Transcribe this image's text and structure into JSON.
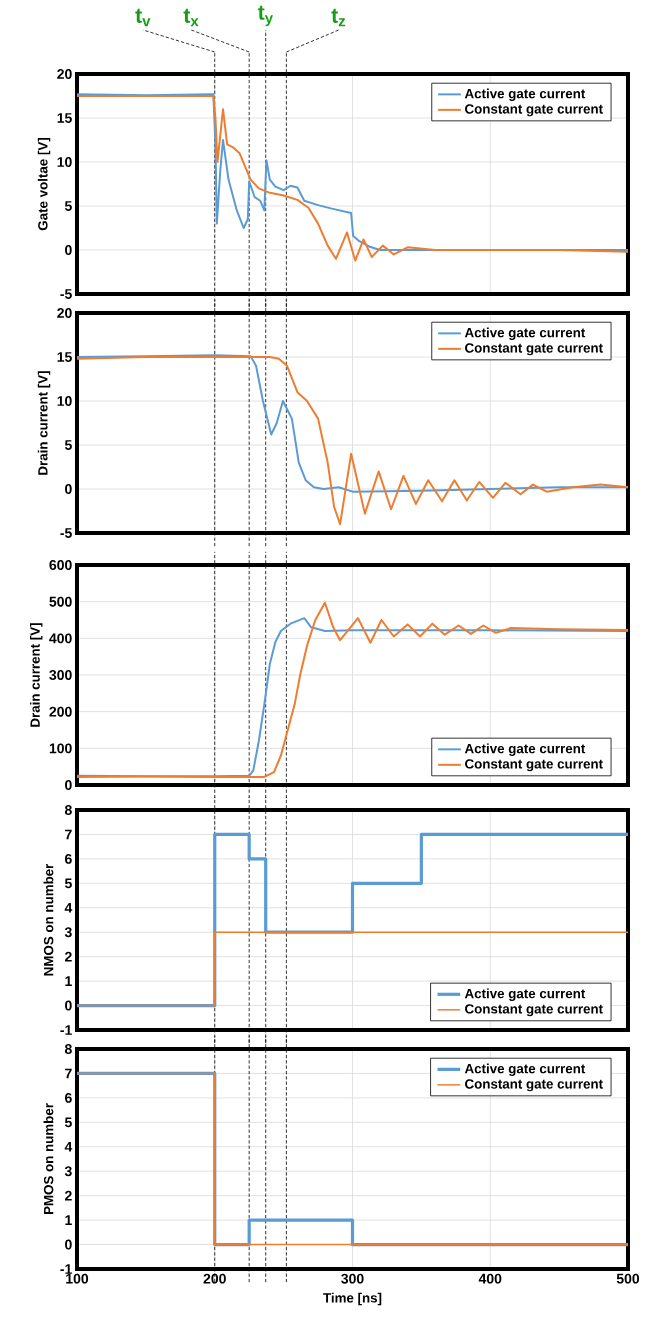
{
  "chart_data": [
    {
      "type": "line",
      "ylabel": "Gate voltae [V]",
      "xlim": [
        100,
        500
      ],
      "xticks": [
        100,
        200,
        300,
        400,
        500
      ],
      "ylim": [
        -5,
        20
      ],
      "yticks": [
        -5,
        0,
        5,
        10,
        15,
        20
      ],
      "tick_labels": "y",
      "grid": true,
      "legend": "top right",
      "ref_lines": [
        {
          "axis": "x",
          "value": 200,
          "label": "t$_{v}$",
          "color": "#000000",
          "line_style": "dashed"
        },
        {
          "axis": "x",
          "value": 225,
          "label": "t$_{x}$",
          "color": "#000000",
          "line_style": "dashed"
        },
        {
          "axis": "x",
          "value": 237,
          "label": "t$_{y}$",
          "color": "#000000",
          "line_style": "dashed"
        },
        {
          "axis": "x",
          "value": 252,
          "label": "t$_{z}$",
          "color": "#000000",
          "line_style": "dashed"
        }
      ],
      "series": [
        {
          "name": "Active  gate current",
          "color": "#5b9bd5",
          "x": [
            100,
            150,
            199,
            200.5,
            201.5,
            204,
            206,
            210,
            216,
            221,
            224,
            225,
            229,
            233,
            236,
            237.5,
            240,
            244,
            250,
            255,
            260,
            265,
            275,
            285,
            299,
            300.5,
            305,
            312,
            320,
            350,
            400,
            450,
            500
          ],
          "values": [
            17.7,
            17.6,
            17.7,
            12,
            3,
            9,
            12.5,
            8,
            4.5,
            2.5,
            3.5,
            7.8,
            6,
            5.6,
            4.5,
            10.2,
            8,
            7.2,
            6.8,
            7.3,
            7.1,
            5.6,
            5.1,
            4.7,
            4.2,
            1.6,
            1,
            0.4,
            0,
            0,
            0,
            0,
            0
          ]
        },
        {
          "name": "Constant gate current",
          "color": "#ed7d31",
          "x": [
            100,
            150,
            199,
            200.5,
            202,
            204,
            206,
            209,
            213,
            218,
            222,
            226,
            232,
            240,
            250,
            260,
            268,
            275,
            282,
            288,
            296,
            302,
            308,
            314,
            322,
            330,
            340,
            360,
            400,
            450,
            500
          ],
          "values": [
            17.5,
            17.5,
            17.5,
            15,
            10,
            13,
            16,
            12,
            11.7,
            11,
            9.5,
            8,
            7,
            6.5,
            6.2,
            5.7,
            4.8,
            3,
            0.5,
            -1,
            2,
            -1.2,
            1.2,
            -0.8,
            0.5,
            -0.5,
            0.3,
            0,
            0,
            0,
            -0.2
          ]
        }
      ]
    },
    {
      "type": "line",
      "ylabel": "Drain current [V]",
      "xlim": [
        100,
        500
      ],
      "xticks": [
        100,
        200,
        300,
        400,
        500
      ],
      "ylim": [
        -5,
        20
      ],
      "yticks": [
        -5,
        0,
        5,
        10,
        15,
        20
      ],
      "tick_labels": "y",
      "grid": true,
      "legend": "top right",
      "ref_lines": [
        {
          "axis": "x",
          "value": 200,
          "color": "#000000",
          "line_style": "dashed"
        },
        {
          "axis": "x",
          "value": 225,
          "color": "#000000",
          "line_style": "dashed"
        },
        {
          "axis": "x",
          "value": 237,
          "color": "#000000",
          "line_style": "dashed"
        },
        {
          "axis": "x",
          "value": 252,
          "color": "#000000",
          "line_style": "dashed"
        }
      ],
      "series": [
        {
          "name": "Active  gate current",
          "color": "#5b9bd5",
          "x": [
            100,
            150,
            200,
            226,
            230,
            235,
            241,
            245,
            249.5,
            256,
            261,
            266,
            272,
            279,
            290,
            300,
            350,
            400,
            450,
            500
          ],
          "values": [
            15,
            15.1,
            15.2,
            15.1,
            14,
            10,
            6.2,
            7.5,
            10,
            8,
            3,
            1,
            0.2,
            0,
            0.2,
            -0.3,
            -0.2,
            0,
            0.2,
            0.2
          ]
        },
        {
          "name": "Constant gate current",
          "color": "#ed7d31",
          "x": [
            100,
            150,
            200,
            240,
            246.5,
            252.5,
            260,
            267,
            275,
            282,
            286.6,
            291,
            299,
            309,
            319,
            328,
            337,
            346,
            355,
            365,
            374,
            383,
            392,
            402,
            411,
            422,
            431,
            441,
            460,
            480,
            500
          ],
          "values": [
            14.8,
            15,
            15,
            15,
            14.8,
            14,
            11,
            10,
            8,
            3,
            -2,
            -4,
            4,
            -2.8,
            2,
            -2.3,
            1.5,
            -1.7,
            1,
            -1.4,
            1,
            -1.3,
            0.8,
            -1,
            0.7,
            -0.6,
            0.5,
            -0.3,
            0.2,
            0.5,
            0.2
          ]
        }
      ]
    },
    {
      "type": "line",
      "ylabel": "Drain current [V]",
      "xlim": [
        100,
        500
      ],
      "xticks": [
        100,
        200,
        300,
        400,
        500
      ],
      "ylim": [
        0,
        600
      ],
      "yticks": [
        0,
        100,
        200,
        300,
        400,
        500,
        600
      ],
      "tick_labels": "y",
      "grid": true,
      "legend": "bottom right",
      "ref_lines": [
        {
          "axis": "x",
          "value": 200,
          "color": "#000000",
          "line_style": "dashed"
        },
        {
          "axis": "x",
          "value": 225,
          "color": "#000000",
          "line_style": "dashed"
        },
        {
          "axis": "x",
          "value": 237,
          "color": "#000000",
          "line_style": "dashed"
        },
        {
          "axis": "x",
          "value": 252,
          "color": "#000000",
          "line_style": "dashed"
        }
      ],
      "series": [
        {
          "name": "Active  gate current",
          "color": "#5b9bd5",
          "x": [
            100,
            150,
            200,
            225,
            228,
            232,
            236,
            240,
            244,
            248,
            255,
            265,
            270,
            280,
            300,
            400,
            500
          ],
          "values": [
            25,
            24,
            24,
            25,
            40,
            120,
            220,
            330,
            390,
            420,
            440,
            455,
            430,
            420,
            422,
            422,
            420
          ]
        },
        {
          "name": "Constant gate current",
          "color": "#ed7d31",
          "x": [
            100,
            150,
            200,
            236,
            243,
            248,
            253,
            258,
            262,
            267,
            273,
            280,
            286,
            291,
            304,
            313,
            321,
            330,
            340,
            349,
            358,
            367,
            377,
            386,
            395,
            404,
            415,
            450,
            500
          ],
          "values": [
            22,
            23,
            22,
            22,
            35,
            80,
            150,
            220,
            300,
            380,
            450,
            497,
            430,
            395,
            455,
            388,
            450,
            405,
            438,
            405,
            440,
            410,
            435,
            412,
            435,
            415,
            428,
            425,
            423
          ]
        }
      ]
    },
    {
      "type": "step",
      "ylabel": "NMOS on number",
      "xlim": [
        100,
        500
      ],
      "xticks": [
        100,
        200,
        300,
        400,
        500
      ],
      "ylim": [
        -1,
        8
      ],
      "yticks": [
        -1,
        0,
        1,
        2,
        3,
        4,
        5,
        6,
        7,
        8
      ],
      "tick_labels": "y",
      "grid": true,
      "legend": "bottom right",
      "ref_lines": [
        {
          "axis": "x",
          "value": 200,
          "color": "#000000",
          "line_style": "dashed"
        },
        {
          "axis": "x",
          "value": 225,
          "color": "#000000",
          "line_style": "dashed"
        },
        {
          "axis": "x",
          "value": 237,
          "color": "#000000",
          "line_style": "dashed"
        },
        {
          "axis": "x",
          "value": 252,
          "color": "#000000",
          "line_style": "dashed"
        }
      ],
      "series": [
        {
          "name": "Active  gate current",
          "color": "#5b9bd5",
          "x": [
            100,
            200,
            225,
            237,
            300,
            350,
            500
          ],
          "values": [
            0,
            7,
            6,
            3,
            5,
            7,
            7
          ]
        },
        {
          "name": "Constant gate current",
          "color": "#ed7d31",
          "x": [
            100,
            200,
            500
          ],
          "values": [
            0,
            3,
            3
          ]
        }
      ]
    },
    {
      "type": "step",
      "ylabel": "PMOS on number",
      "xlabel": "Time [ns]",
      "xlim": [
        100,
        500
      ],
      "xticks": [
        100,
        200,
        300,
        400,
        500
      ],
      "ylim": [
        -1,
        8
      ],
      "yticks": [
        -1,
        0,
        1,
        2,
        3,
        4,
        5,
        6,
        7,
        8
      ],
      "grid": true,
      "legend": "top right",
      "ref_lines": [
        {
          "axis": "x",
          "value": 200,
          "color": "#000000",
          "line_style": "dashed"
        },
        {
          "axis": "x",
          "value": 225,
          "color": "#000000",
          "line_style": "dashed"
        },
        {
          "axis": "x",
          "value": 237,
          "color": "#000000",
          "line_style": "dashed"
        },
        {
          "axis": "x",
          "value": 252,
          "color": "#000000",
          "line_style": "dashed"
        }
      ],
      "series": [
        {
          "name": "Active  gate current",
          "color": "#5b9bd5",
          "x": [
            100,
            200,
            225,
            300,
            500
          ],
          "values": [
            7,
            0,
            1,
            0,
            0
          ]
        },
        {
          "name": "Constant gate current",
          "color": "#ed7d31",
          "x": [
            100,
            200,
            500
          ],
          "values": [
            7,
            0,
            0
          ]
        }
      ]
    }
  ]
}
